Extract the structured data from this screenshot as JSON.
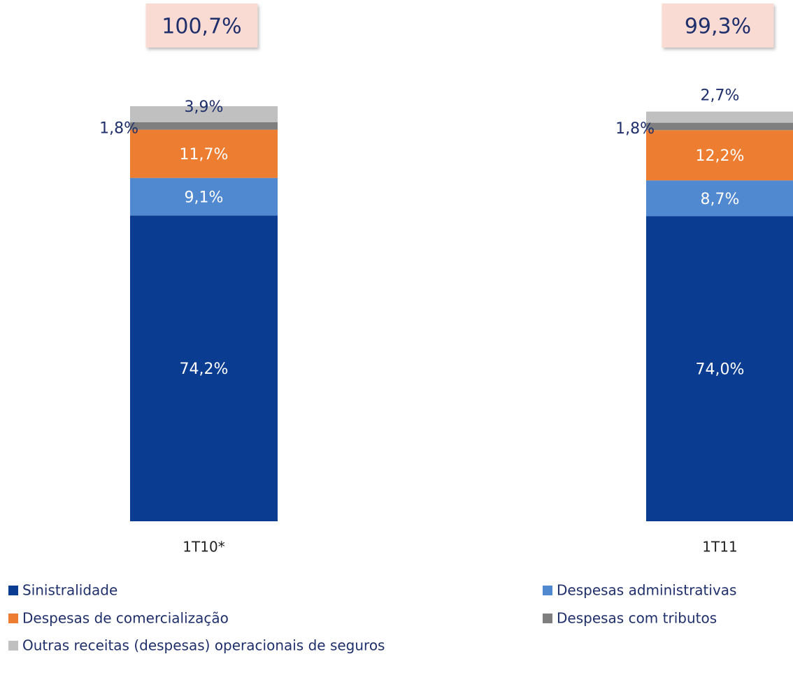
{
  "chart_data": {
    "type": "stacked_bar",
    "categories": [
      "1T10*",
      "1T11"
    ],
    "totals": [
      100.7,
      99.3
    ],
    "total_labels": [
      "100,7%",
      "99,3%"
    ],
    "series": [
      {
        "name": "Sinistralidade",
        "color": "#0a3d91",
        "values": [
          74.2,
          74.0
        ],
        "value_labels": [
          "74,2%",
          "74,0%"
        ]
      },
      {
        "name": "Despesas administrativas",
        "color": "#5089cf",
        "values": [
          9.1,
          8.7
        ],
        "value_labels": [
          "9,1%",
          "8,7%"
        ]
      },
      {
        "name": "Despesas de comercialização",
        "color": "#ed7d31",
        "values": [
          11.7,
          12.2
        ],
        "value_labels": [
          "11,7%",
          "12,2%"
        ]
      },
      {
        "name": "Despesas com tributos",
        "color": "#7f7f7f",
        "values": [
          1.8,
          1.8
        ],
        "value_labels": [
          "1,8%",
          "1,8%"
        ]
      },
      {
        "name": "Outras receitas (despesas) operacionais de seguros",
        "color": "#c0c0c0",
        "values": [
          3.9,
          2.7
        ],
        "value_labels": [
          "3,9%",
          "2,7%"
        ]
      }
    ]
  }
}
